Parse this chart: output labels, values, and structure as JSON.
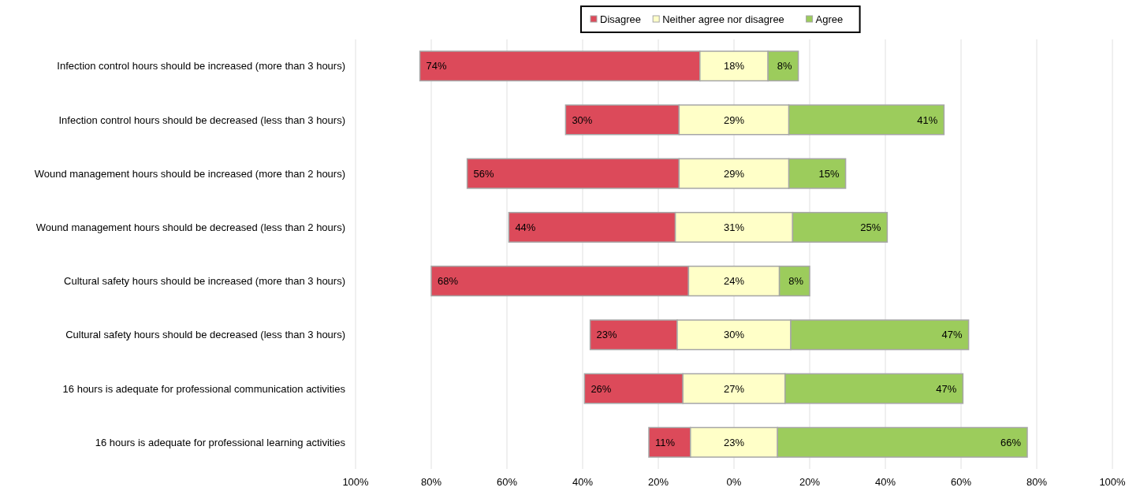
{
  "chart_data": {
    "type": "bar",
    "orientation": "horizontal",
    "categories": [
      "Infection control hours should be increased (more than 3 hours)",
      "Infection control hours should be decreased (less than 3 hours)",
      "Wound management hours should be increased (more than 2 hours)",
      "Wound management hours should be decreased (less than 2 hours)",
      "Cultural safety hours should be increased (more than 3 hours)",
      "Cultural safety hours should be decreased (less than 3 hours)",
      "16 hours is adequate for professional communication activities",
      "16 hours is adequate for professional learning activities"
    ],
    "series": [
      {
        "name": "Disagree",
        "color": "#dc4a5a",
        "values": [
          74,
          30,
          56,
          44,
          68,
          23,
          26,
          11
        ],
        "base": [
          -83,
          -44.5,
          -70.5,
          -59.5,
          -80,
          -38,
          -39.5,
          -22.5
        ],
        "value_labels": [
          "74%",
          "30%",
          "56%",
          "44%",
          "68%",
          "23%",
          "26%",
          "11%"
        ]
      },
      {
        "name": "Neither agree nor disagree",
        "color": "#ffffc8",
        "values": [
          18,
          29,
          29,
          31,
          24,
          30,
          27,
          23
        ],
        "base": [
          -9,
          -14.5,
          -14.5,
          -15.5,
          -12,
          -15,
          -13.5,
          -11.5
        ],
        "value_labels": [
          "18%",
          "29%",
          "29%",
          "31%",
          "24%",
          "30%",
          "27%",
          "23%"
        ]
      },
      {
        "name": "Agree",
        "color": "#9ccc5c",
        "values": [
          8,
          41,
          15,
          25,
          8,
          47,
          47,
          66
        ],
        "base": [
          9,
          14.5,
          14.5,
          15.5,
          12,
          15,
          13.5,
          11.5
        ],
        "value_labels": [
          "8%",
          "41%",
          "15%",
          "25%",
          "8%",
          "47%",
          "47%",
          "66%"
        ]
      }
    ],
    "xlim": [
      -100,
      100
    ],
    "xticks": [
      {
        "value": -100,
        "label": "100%"
      },
      {
        "value": -80,
        "label": "80%"
      },
      {
        "value": -60,
        "label": "60%"
      },
      {
        "value": -40,
        "label": "40%"
      },
      {
        "value": -20,
        "label": "20%"
      },
      {
        "value": 0,
        "label": "0%"
      },
      {
        "value": 20,
        "label": "20%"
      },
      {
        "value": 40,
        "label": "40%"
      },
      {
        "value": 60,
        "label": "60%"
      },
      {
        "value": 80,
        "label": "80%"
      },
      {
        "value": 100,
        "label": "100%"
      }
    ],
    "grid": "x",
    "legend": "top"
  }
}
